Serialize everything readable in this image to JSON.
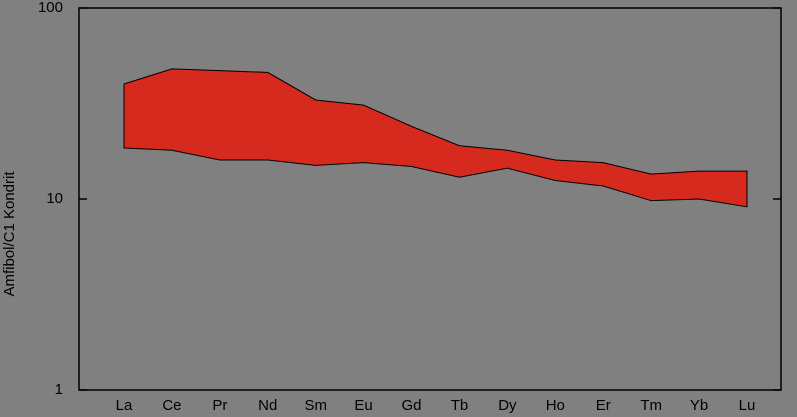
{
  "chart_data": {
    "type": "range-area",
    "y_label": "Amfibol/C1 Kondrit",
    "categories": [
      "La",
      "Ce",
      "Pr",
      "Nd",
      "Sm",
      "Eu",
      "Gd",
      "Tb",
      "Dy",
      "Ho",
      "Er",
      "Tm",
      "Yb",
      "Lu"
    ],
    "high": [
      40,
      48,
      47,
      46,
      33,
      31,
      24,
      19,
      18,
      16,
      15.5,
      13.5,
      14,
      14
    ],
    "low": [
      18.5,
      18,
      16,
      16,
      15,
      15.5,
      14.8,
      13,
      14.5,
      12.5,
      11.7,
      9.8,
      10,
      9.1
    ],
    "color": "#d62a1e",
    "ylim": [
      1,
      100
    ],
    "yticks": [
      1,
      10,
      100
    ],
    "ylog": true
  }
}
